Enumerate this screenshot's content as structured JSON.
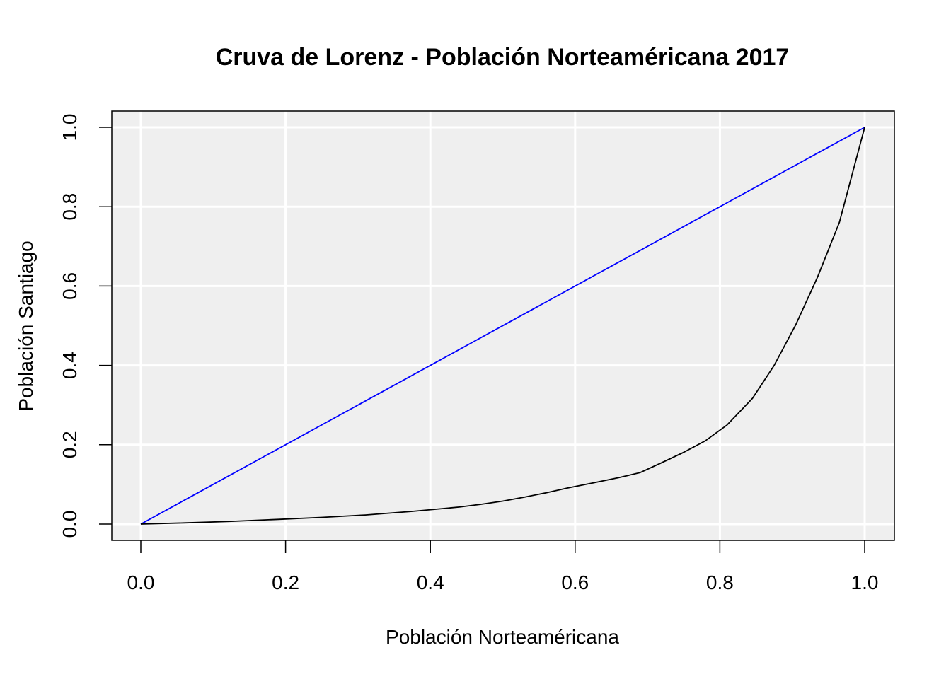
{
  "chart_data": {
    "type": "line",
    "title": "Cruva de Lorenz - Población Norteaméricana 2017",
    "xlabel": "Población Norteaméricana",
    "ylabel": "Población Santiago",
    "xlim": [
      0,
      1
    ],
    "ylim": [
      0,
      1
    ],
    "x_ticks": [
      "0.0",
      "0.2",
      "0.4",
      "0.6",
      "0.8",
      "1.0"
    ],
    "y_ticks": [
      "0.0",
      "0.2",
      "0.4",
      "0.6",
      "0.8",
      "1.0"
    ],
    "grid": true,
    "background": "#efefef",
    "series": [
      {
        "color": "#0000ff",
        "x": [
          0,
          1
        ],
        "y": [
          0,
          1
        ]
      },
      {
        "color": "#000000",
        "x": [
          0,
          0.06,
          0.125,
          0.19,
          0.25,
          0.31,
          0.375,
          0.44,
          0.47,
          0.5,
          0.53,
          0.56,
          0.59,
          0.625,
          0.66,
          0.69,
          0.72,
          0.75,
          0.78,
          0.81,
          0.845,
          0.875,
          0.905,
          0.935,
          0.965,
          1.0
        ],
        "y": [
          0,
          0.003,
          0.007,
          0.012,
          0.017,
          0.023,
          0.032,
          0.043,
          0.05,
          0.058,
          0.068,
          0.079,
          0.091,
          0.104,
          0.117,
          0.13,
          0.155,
          0.181,
          0.21,
          0.25,
          0.317,
          0.4,
          0.503,
          0.623,
          0.76,
          1.0
        ]
      }
    ]
  }
}
